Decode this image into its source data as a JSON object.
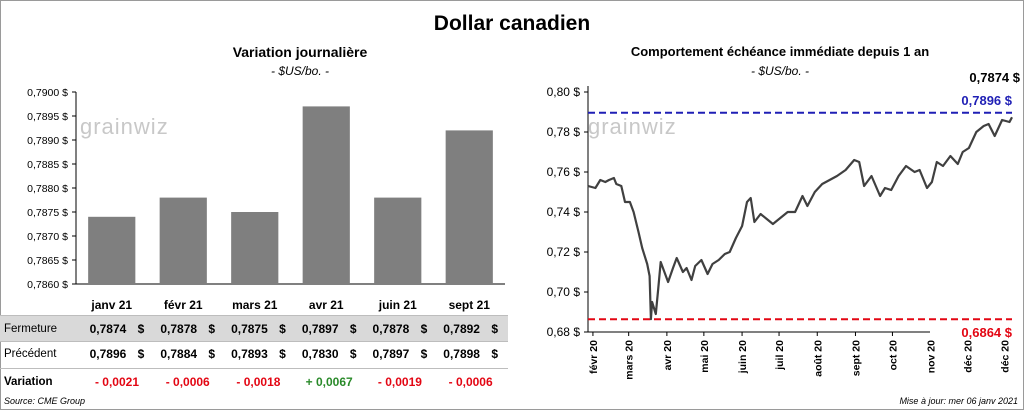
{
  "title": "Dollar canadien",
  "left_panel": {
    "title": "Variation  journalière",
    "subtitle": "- $US/bo. -"
  },
  "right_panel": {
    "title": "Comportement échéance immédiate depuis 1 an",
    "subtitle": "- $US/bo. -",
    "last_value_label": "0,7874 $",
    "high_label": "0,7896  $",
    "low_label": "0,6864  $"
  },
  "watermark": "grainwiz",
  "table": {
    "labels": [
      "Fermeture",
      "Précédent",
      "Variation"
    ],
    "fermeture": [
      "0,7874",
      "0,7878",
      "0,7875",
      "0,7897",
      "0,7878",
      "0,7892"
    ],
    "precedent": [
      "0,7896",
      "0,7884",
      "0,7893",
      "0,7830",
      "0,7897",
      "0,7898"
    ],
    "variation": [
      "- 0,0021",
      "- 0,0006",
      "- 0,0018",
      "+ 0,0067",
      "- 0,0019",
      "- 0,0006"
    ],
    "currency": "$"
  },
  "footer": {
    "source": "Source: CME Group",
    "updated": "Mise à jour: mer 06 janv 2021"
  },
  "colors": {
    "bar": "#7f7f7f",
    "line": "#404040",
    "high_line": "#1f1fb5",
    "low_line": "#e30613",
    "negative": "#e30613",
    "positive": "#2a8a2a"
  },
  "chart_data": [
    {
      "type": "bar",
      "title": "Variation  journalière",
      "subtitle": "- $US/bo. -",
      "categories": [
        "janv 21",
        "févr 21",
        "mars 21",
        "avr 21",
        "juin 21",
        "sept 21"
      ],
      "values": [
        0.7874,
        0.7878,
        0.7875,
        0.7897,
        0.7878,
        0.7892
      ],
      "ylim": [
        0.786,
        0.79
      ],
      "yticks": [
        "0,7860 $",
        "0,7865 $",
        "0,7870 $",
        "0,7875 $",
        "0,7880 $",
        "0,7885 $",
        "0,7890 $",
        "0,7895 $",
        "0,7900 $"
      ],
      "ytick_values": [
        0.786,
        0.7865,
        0.787,
        0.7875,
        0.788,
        0.7885,
        0.789,
        0.7895,
        0.79
      ],
      "grid": false
    },
    {
      "type": "line",
      "title": "Comportement échéance immédiate depuis 1 an",
      "subtitle": "- $US/bo. -",
      "x_range": [
        "2020-01-28",
        "2021-01-06"
      ],
      "xticks": [
        "févr 20",
        "mars 20",
        "avr 20",
        "mai 20",
        "juin 20",
        "juil 20",
        "août 20",
        "sept 20",
        "oct 20",
        "nov 20",
        "déc 20",
        "déc 20"
      ],
      "xtick_dates": [
        "2020-02-01",
        "2020-03-01",
        "2020-04-01",
        "2020-05-01",
        "2020-06-01",
        "2020-07-01",
        "2020-08-01",
        "2020-09-01",
        "2020-10-01",
        "2020-11-01",
        "2020-12-01",
        "2020-12-31"
      ],
      "ylim": [
        0.68,
        0.8
      ],
      "yticks": [
        "0,68 $",
        "0,70 $",
        "0,72 $",
        "0,74 $",
        "0,76 $",
        "0,78 $",
        "0,80 $"
      ],
      "ytick_values": [
        0.68,
        0.7,
        0.72,
        0.74,
        0.76,
        0.78,
        0.8
      ],
      "reference_lines": [
        {
          "label": "0,7896  $",
          "value": 0.7896,
          "color": "#1f1fb5"
        },
        {
          "label": "0,6864  $",
          "value": 0.6864,
          "color": "#e30613"
        }
      ],
      "series": [
        {
          "x": [
            "2020-01-28",
            "2020-02-03",
            "2020-02-07",
            "2020-02-11",
            "2020-02-14",
            "2020-02-18",
            "2020-02-20",
            "2020-02-24",
            "2020-02-27",
            "2020-03-02",
            "2020-03-05",
            "2020-03-09",
            "2020-03-12",
            "2020-03-16",
            "2020-03-18",
            "2020-03-19",
            "2020-03-20",
            "2020-03-23",
            "2020-03-25",
            "2020-03-27",
            "2020-03-30",
            "2020-04-02",
            "2020-04-06",
            "2020-04-09",
            "2020-04-14",
            "2020-04-17",
            "2020-04-21",
            "2020-04-24",
            "2020-04-29",
            "2020-05-04",
            "2020-05-08",
            "2020-05-13",
            "2020-05-18",
            "2020-05-22",
            "2020-05-27",
            "2020-06-01",
            "2020-06-05",
            "2020-06-08",
            "2020-06-11",
            "2020-06-16",
            "2020-06-22",
            "2020-06-26",
            "2020-07-02",
            "2020-07-08",
            "2020-07-14",
            "2020-07-20",
            "2020-07-24",
            "2020-07-30",
            "2020-08-05",
            "2020-08-11",
            "2020-08-17",
            "2020-08-24",
            "2020-08-31",
            "2020-09-04",
            "2020-09-08",
            "2020-09-14",
            "2020-09-21",
            "2020-09-25",
            "2020-09-30",
            "2020-10-06",
            "2020-10-12",
            "2020-10-19",
            "2020-10-23",
            "2020-10-29",
            "2020-11-02",
            "2020-11-06",
            "2020-11-11",
            "2020-11-17",
            "2020-11-23",
            "2020-11-27",
            "2020-12-02",
            "2020-12-08",
            "2020-12-14",
            "2020-12-18",
            "2020-12-23",
            "2020-12-29",
            "2021-01-04",
            "2021-01-06"
          ],
          "y": [
            0.753,
            0.752,
            0.756,
            0.755,
            0.756,
            0.757,
            0.754,
            0.753,
            0.745,
            0.745,
            0.74,
            0.73,
            0.722,
            0.714,
            0.708,
            0.6864,
            0.695,
            0.689,
            0.702,
            0.715,
            0.71,
            0.705,
            0.712,
            0.717,
            0.71,
            0.712,
            0.706,
            0.713,
            0.716,
            0.709,
            0.714,
            0.716,
            0.719,
            0.72,
            0.727,
            0.733,
            0.745,
            0.747,
            0.735,
            0.739,
            0.736,
            0.734,
            0.737,
            0.74,
            0.74,
            0.748,
            0.743,
            0.75,
            0.754,
            0.756,
            0.758,
            0.761,
            0.766,
            0.765,
            0.753,
            0.758,
            0.748,
            0.752,
            0.751,
            0.758,
            0.763,
            0.76,
            0.761,
            0.752,
            0.755,
            0.765,
            0.763,
            0.768,
            0.764,
            0.77,
            0.772,
            0.78,
            0.783,
            0.784,
            0.778,
            0.786,
            0.785,
            0.7874
          ]
        }
      ]
    }
  ]
}
